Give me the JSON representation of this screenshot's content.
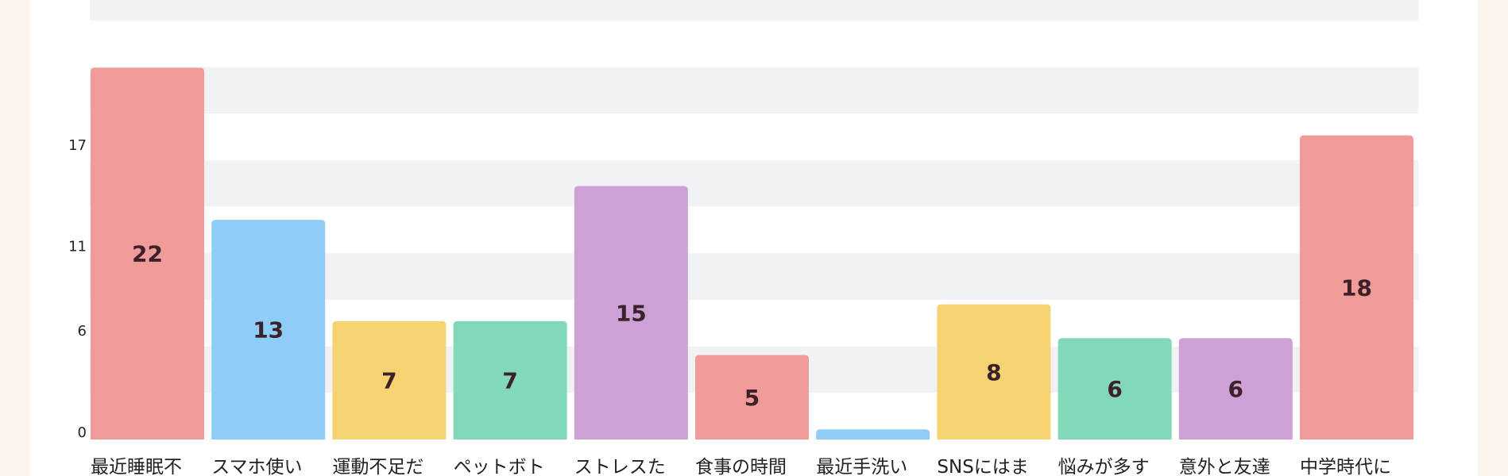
{
  "chart_data": {
    "type": "bar",
    "categories": [
      "最近睡眠不",
      "スマホ使い",
      "運動不足だ",
      "ペットボト",
      "ストレスた",
      "食事の時間",
      "最近手洗い",
      "SNSにはま",
      "悩みが多す",
      "意外と友達",
      "中学時代に"
    ],
    "values": [
      22,
      13,
      7,
      7,
      15,
      5,
      0.6,
      8,
      6,
      6,
      18
    ],
    "yticks": [
      0,
      6,
      11,
      17
    ],
    "grid": "horizontal alternating bands",
    "data_labels": [
      "22",
      "13",
      "7",
      "7",
      "15",
      "5",
      "",
      "8",
      "6",
      "6",
      "18"
    ],
    "colors": [
      "#f09b9a",
      "#8ecdf8",
      "#f6d372",
      "#81d9b7",
      "#cda1d6",
      "#f09b9a",
      "#8ecdf8",
      "#f6d372",
      "#81d9b7",
      "#cda1d6",
      "#f09b9a"
    ],
    "band_color": "#f1f2f4"
  }
}
